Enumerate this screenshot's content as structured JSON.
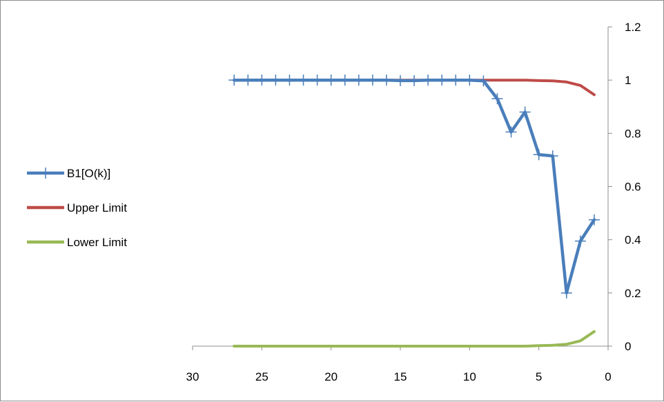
{
  "chart_data": {
    "type": "line",
    "title": "",
    "xlabel": "",
    "ylabel": "",
    "x_reversed": true,
    "xlim": [
      0,
      30
    ],
    "ylim": [
      0,
      1.2
    ],
    "x_ticks": [
      "30",
      "25",
      "20",
      "15",
      "10",
      "5",
      "0"
    ],
    "y_ticks": [
      "0",
      "0.2",
      "0.4",
      "0.6",
      "0.8",
      "1",
      "1.2"
    ],
    "y_axis_position": "right",
    "grid": false,
    "legend_position": "left",
    "x": [
      27,
      26,
      25,
      24,
      23,
      22,
      21,
      20,
      19,
      18,
      17,
      16,
      15,
      14,
      13,
      12,
      11,
      10,
      9,
      8,
      7,
      6,
      5,
      4,
      3,
      2,
      1
    ],
    "series": [
      {
        "name": "B1[O(k)]",
        "color": "#4a7ebb",
        "marker": "plus",
        "values": [
          1,
          1,
          1,
          1,
          1,
          1,
          1,
          1,
          1,
          1,
          1,
          1,
          0.998,
          0.998,
          1,
          1,
          1,
          1,
          0.997,
          0.93,
          0.805,
          0.88,
          0.72,
          0.715,
          0.2,
          0.395,
          0.475
        ]
      },
      {
        "name": "Upper Limit",
        "color": "#be4b48",
        "marker": "none",
        "values": [
          1,
          1,
          1,
          1,
          1,
          1,
          1,
          1,
          1,
          1,
          1,
          1,
          1,
          1,
          1,
          1,
          1,
          1,
          1,
          1,
          1,
          1,
          0.998,
          0.997,
          0.993,
          0.98,
          0.945
        ]
      },
      {
        "name": "Lower Limit",
        "color": "#98b954",
        "marker": "none",
        "values": [
          0,
          0,
          0,
          0,
          0,
          0,
          0,
          0,
          0,
          0,
          0,
          0,
          0,
          0,
          0,
          0,
          0,
          0,
          0,
          0,
          0,
          0,
          0.002,
          0.003,
          0.007,
          0.02,
          0.055
        ]
      }
    ]
  }
}
